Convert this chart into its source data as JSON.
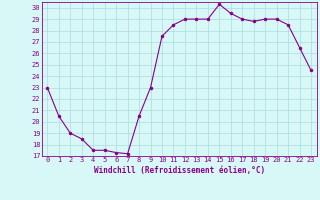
{
  "x": [
    0,
    1,
    2,
    3,
    4,
    5,
    6,
    7,
    8,
    9,
    10,
    11,
    12,
    13,
    14,
    15,
    16,
    17,
    18,
    19,
    20,
    21,
    22,
    23
  ],
  "y": [
    23,
    20.5,
    19,
    18.5,
    17.5,
    17.5,
    17.3,
    17.2,
    20.5,
    23,
    27.5,
    28.5,
    29,
    29,
    29,
    30.3,
    29.5,
    29,
    28.8,
    29,
    29,
    28.5,
    26.5,
    24.5
  ],
  "line_color": "#880088",
  "marker_color": "#880088",
  "bg_color": "#d8f8f8",
  "grid_color": "#aadddd",
  "xlabel": "Windchill (Refroidissement éolien,°C)",
  "ylim": [
    17,
    30.5
  ],
  "xlim": [
    -0.5,
    23.5
  ],
  "yticks": [
    17,
    18,
    19,
    20,
    21,
    22,
    23,
    24,
    25,
    26,
    27,
    28,
    29,
    30
  ],
  "xticks": [
    0,
    1,
    2,
    3,
    4,
    5,
    6,
    7,
    8,
    9,
    10,
    11,
    12,
    13,
    14,
    15,
    16,
    17,
    18,
    19,
    20,
    21,
    22,
    23
  ],
  "xlabel_fontsize": 5.5,
  "tick_fontsize": 5.0
}
